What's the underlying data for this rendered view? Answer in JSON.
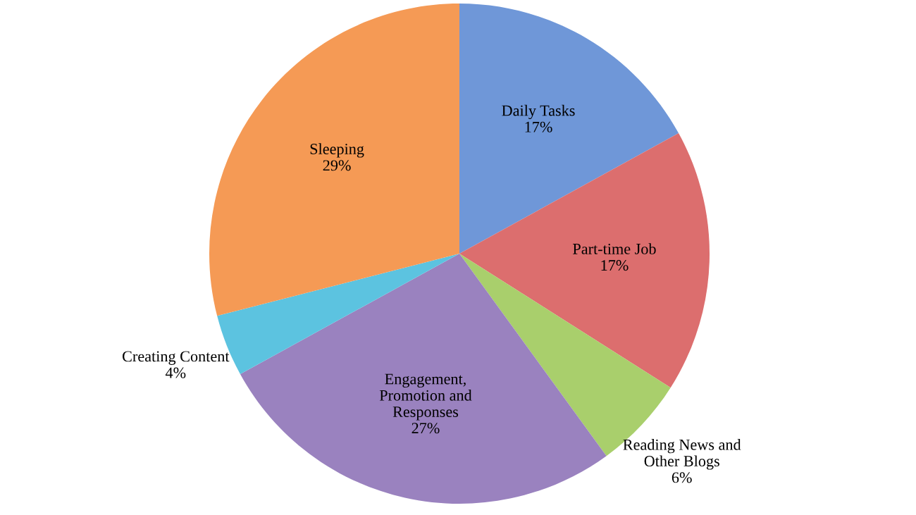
{
  "chart_data": {
    "type": "pie",
    "categories": [
      "Daily Tasks",
      "Part-time Job",
      "Reading News and\nOther Blogs",
      "Engagement,\nPromotion and\nResponses",
      "Creating Content",
      "Sleeping"
    ],
    "values": [
      17,
      17,
      6,
      27,
      4,
      29
    ],
    "value_labels": [
      "17%",
      "17%",
      "6%",
      "27%",
      "4%",
      "29%"
    ],
    "colors": [
      "#6f97d8",
      "#dc6e6e",
      "#a9cf6c",
      "#9a82bf",
      "#5cc3e0",
      "#f59a55"
    ]
  }
}
